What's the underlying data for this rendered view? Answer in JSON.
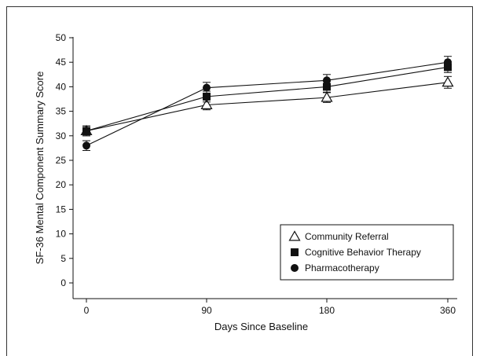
{
  "chart_data": {
    "type": "line",
    "x": [
      0,
      90,
      180,
      360
    ],
    "x_tick_labels": [
      "0",
      "90",
      "180",
      "360"
    ],
    "y_ticks": [
      0,
      5,
      10,
      15,
      20,
      25,
      30,
      35,
      40,
      45,
      50
    ],
    "ylim": [
      0,
      50
    ],
    "xlabel": "Days Since Baseline",
    "ylabel": "SF-36 Mental Component Summary Score",
    "legend_position": "bottom-right",
    "grid": false,
    "series": [
      {
        "name": "Community Referral",
        "marker": "open-triangle",
        "values": [
          31.0,
          36.3,
          37.8,
          40.9
        ],
        "error": [
          1.0,
          1.0,
          1.0,
          1.2
        ]
      },
      {
        "name": "Cognitive Behavior Therapy",
        "marker": "filled-square",
        "values": [
          31.0,
          38.0,
          40.0,
          44.0
        ],
        "error": [
          1.0,
          1.1,
          1.1,
          1.1
        ]
      },
      {
        "name": "Pharmacotherapy",
        "marker": "filled-circle",
        "values": [
          28.0,
          39.8,
          41.3,
          45.0
        ],
        "error": [
          1.0,
          1.1,
          1.2,
          1.2
        ]
      }
    ],
    "colors": {
      "line": "#111111",
      "marker": "#111111",
      "background": "#ffffff"
    }
  }
}
